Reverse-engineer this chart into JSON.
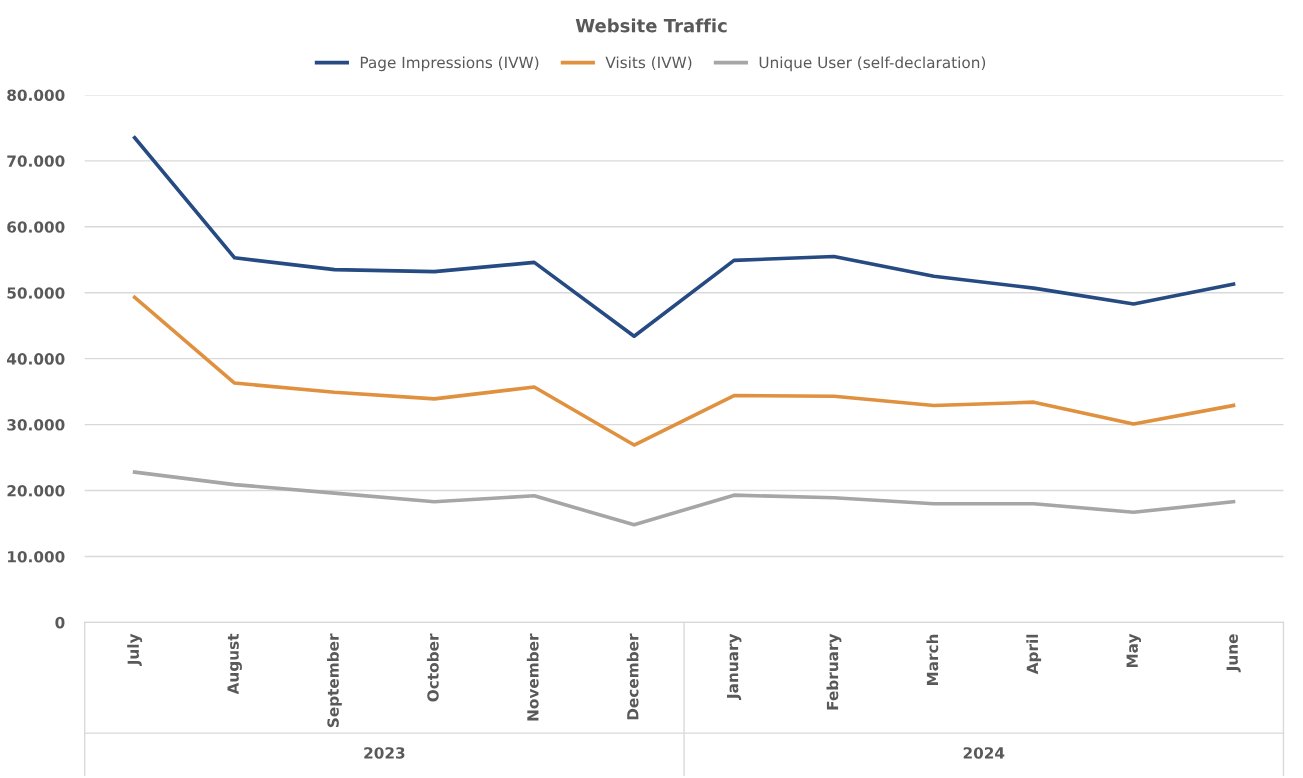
{
  "chart_data": {
    "type": "line",
    "title": "Website Traffic",
    "categories": [
      "July",
      "August",
      "September",
      "October",
      "November",
      "December",
      "January",
      "February",
      "March",
      "April",
      "May",
      "June"
    ],
    "series": [
      {
        "name": "Page Impressions (IVW)",
        "color": "#264a82",
        "values": [
          73500,
          55300,
          53500,
          53200,
          54600,
          43400,
          54900,
          55500,
          52500,
          50700,
          48300,
          51300
        ]
      },
      {
        "name": "Visits (IVW)",
        "color": "#e0913f",
        "values": [
          49300,
          36300,
          34900,
          33900,
          35700,
          26900,
          34400,
          34300,
          32900,
          33400,
          30100,
          32900
        ]
      },
      {
        "name": "Unique User (self-declaration)",
        "color": "#a6a6a6",
        "values": [
          22800,
          20900,
          19600,
          18300,
          19200,
          14800,
          19300,
          18900,
          18000,
          18000,
          16700,
          18300
        ]
      }
    ],
    "ylim": [
      0,
      80000
    ],
    "yticks": [
      {
        "value": 0,
        "label": "0"
      },
      {
        "value": 10000,
        "label": "10.000"
      },
      {
        "value": 20000,
        "label": "20.000"
      },
      {
        "value": 30000,
        "label": "30.000"
      },
      {
        "value": 40000,
        "label": "40.000"
      },
      {
        "value": 50000,
        "label": "50.000"
      },
      {
        "value": 60000,
        "label": "60.000"
      },
      {
        "value": 70000,
        "label": "70.000"
      },
      {
        "value": 80000,
        "label": "80.000"
      }
    ],
    "grid": "y",
    "legend": "top",
    "marker": "none",
    "line_style": "solid",
    "annotations": [
      "2023",
      "2024"
    ]
  }
}
